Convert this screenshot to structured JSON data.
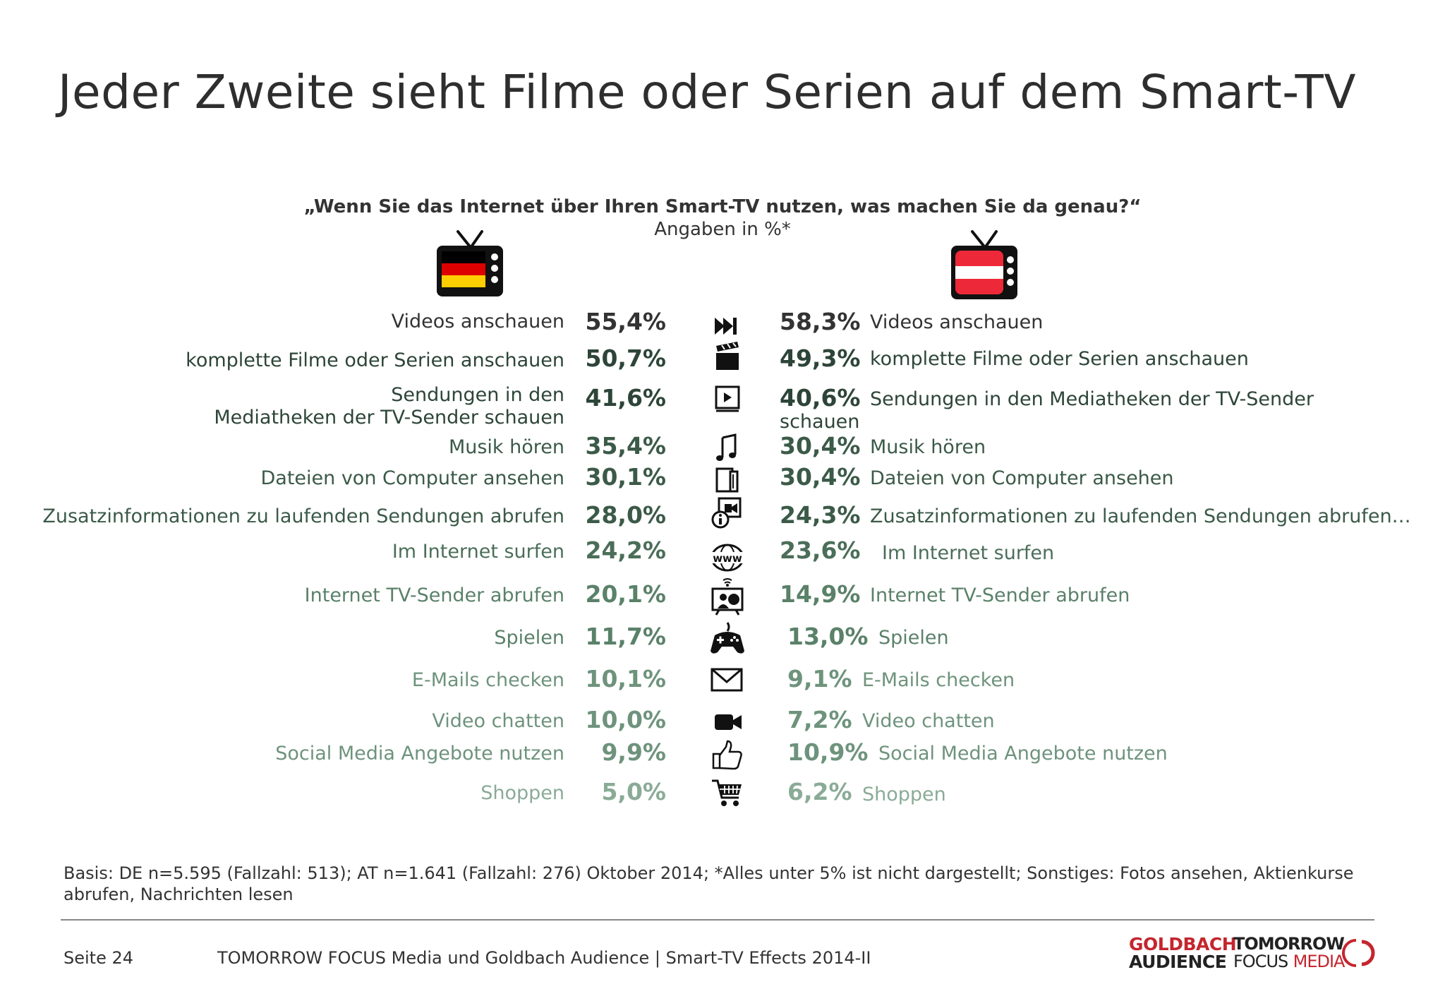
{
  "title": "Jeder Zweite sieht Filme oder Serien auf dem Smart-TV",
  "question": "„Wenn Sie das Internet über Ihren Smart-TV nutzen, was machen Sie da genau?“",
  "subquestion": "Angaben in %*",
  "colors": {
    "text_dark": "#333333",
    "green_shades": [
      "#333333",
      "#2d4538",
      "#3b5a48",
      "#4b6e59",
      "#5a8169",
      "#6e937c",
      "#8aab96"
    ],
    "brand_red": "#c4262e"
  },
  "flags": {
    "left": {
      "icon": "germany-tv-icon",
      "stripes": [
        "#000000",
        "#dd0000",
        "#ffce00"
      ]
    },
    "right": {
      "icon": "austria-tv-icon",
      "stripes": [
        "#ed2939",
        "#ffffff",
        "#ed2939"
      ]
    }
  },
  "rows": [
    {
      "icon": "fast-forward-icon",
      "left_label": "Videos anschauen",
      "left_pct": "55,4%",
      "right_pct": "58,3%",
      "right_label": "Videos anschauen"
    },
    {
      "icon": "clapperboard-icon",
      "left_label": "komplette Filme oder Serien anschauen",
      "left_pct": "50,7%",
      "right_pct": "49,3%",
      "right_label": "komplette Filme oder Serien anschauen"
    },
    {
      "icon": "media-library-icon",
      "left_label_1": "Sendungen in den",
      "left_label_2": "Mediatheken der TV-Sender schauen",
      "left_pct": "41,6%",
      "right_pct": "40,6%",
      "right_label_1": "Sendungen in den Mediatheken  der TV-Sender",
      "right_label_2": "schauen"
    },
    {
      "icon": "music-note-icon",
      "left_label": "Musik hören",
      "left_pct": "35,4%",
      "right_pct": "30,4%",
      "right_label": "Musik hören"
    },
    {
      "icon": "files-icon",
      "left_label": "Dateien von Computer ansehen",
      "left_pct": "30,1%",
      "right_pct": "30,4%",
      "right_label": "Dateien von Computer ansehen"
    },
    {
      "icon": "info-broadcast-icon",
      "left_label": "Zusatzinformationen zu laufenden Sendungen abrufen",
      "left_pct": "28,0%",
      "right_pct": "24,3%",
      "right_label": "Zusatzinformationen zu laufenden Sendungen abrufen…"
    },
    {
      "icon": "www-globe-icon",
      "left_label": "Im Internet surfen",
      "left_pct": "24,2%",
      "right_pct": "23,6%",
      "right_label": "Im Internet surfen"
    },
    {
      "icon": "internet-tv-icon",
      "left_label": "Internet TV-Sender abrufen",
      "left_pct": "20,1%",
      "right_pct": "14,9%",
      "right_label": "Internet TV-Sender abrufen"
    },
    {
      "icon": "gamepad-icon",
      "left_label": "Spielen",
      "left_pct": "11,7%",
      "right_pct": "13,0%",
      "right_label": "Spielen"
    },
    {
      "icon": "envelope-icon",
      "left_label": "E-Mails checken",
      "left_pct": "10,1%",
      "right_pct": "9,1%",
      "right_label": "E-Mails checken"
    },
    {
      "icon": "video-camera-icon",
      "left_label": "Video chatten",
      "left_pct": "10,0%",
      "right_pct": "7,2%",
      "right_label": "Video chatten"
    },
    {
      "icon": "thumbs-up-icon",
      "left_label": "Social Media Angebote nutzen",
      "left_pct": "9,9%",
      "right_pct": "10,9%",
      "right_label": "Social Media Angebote nutzen"
    },
    {
      "icon": "shopping-cart-icon",
      "left_label": "Shoppen",
      "left_pct": "5,0%",
      "right_pct": "6,2%",
      "right_label": "Shoppen"
    }
  ],
  "basis": "Basis: DE n=5.595 (Fallzahl: 513); AT n=1.641 (Fallzahl: 276) Oktober 2014; *Alles unter 5% ist nicht dargestellt; Sonstiges: Fotos ansehen, Aktienkurse abrufen, Nachrichten lesen",
  "footer": {
    "page": "Seite 24",
    "source": "TOMORROW FOCUS Media und Goldbach Audience | Smart-TV Effects 2014-II",
    "logo_goldbach_1": "GOLDBACH",
    "logo_goldbach_2": "AUDIENCE",
    "logo_tf_1": "TOMORROW",
    "logo_tf_2a": "FOCUS",
    "logo_tf_2b": "MEDIA"
  }
}
